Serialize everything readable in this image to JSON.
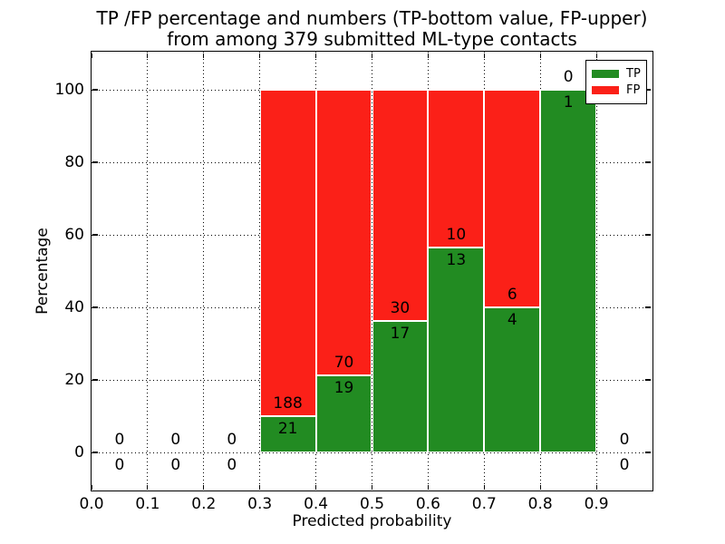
{
  "chart_data": {
    "type": "bar",
    "stacked": true,
    "title_line1": "TP /FP percentage and numbers (TP-bottom value, FP-upper)",
    "title_line2": "from among 379 submitted ML-type contacts",
    "xlabel": "Predicted probability",
    "ylabel": "Percentage",
    "total_contacts": 379,
    "xlim": [
      0.0,
      1.0
    ],
    "ylim": [
      -10.5,
      110.5
    ],
    "xticks": {
      "values": [
        0.0,
        0.1,
        0.2,
        0.3,
        0.4,
        0.5,
        0.6,
        0.7,
        0.8,
        0.9
      ],
      "labels": [
        "0.0",
        "0.1",
        "0.2",
        "0.3",
        "0.4",
        "0.5",
        "0.6",
        "0.7",
        "0.8",
        "0.9"
      ]
    },
    "yticks": {
      "values": [
        0,
        20,
        40,
        60,
        80,
        100
      ],
      "labels": [
        "0",
        "20",
        "40",
        "60",
        "80",
        "100"
      ]
    },
    "grid": {
      "visible": true,
      "style": "dotted",
      "color": "#000000"
    },
    "bin_edges": [
      0.0,
      0.1,
      0.2,
      0.3,
      0.4,
      0.5,
      0.6,
      0.7,
      0.8,
      0.9,
      1.0
    ],
    "categories": [
      "0.0-0.1",
      "0.1-0.2",
      "0.2-0.3",
      "0.3-0.4",
      "0.4-0.5",
      "0.5-0.6",
      "0.6-0.7",
      "0.7-0.8",
      "0.8-0.9",
      "0.9-1.0"
    ],
    "series": [
      {
        "name": "TP",
        "color": "#228b22",
        "counts": [
          0,
          0,
          0,
          21,
          19,
          17,
          13,
          4,
          1,
          0
        ],
        "pct": [
          0,
          0,
          0,
          10.05,
          21.35,
          36.17,
          56.52,
          40.0,
          100.0,
          0
        ]
      },
      {
        "name": "FP",
        "color": "#fb2018",
        "counts": [
          0,
          0,
          0,
          188,
          70,
          30,
          10,
          6,
          0,
          0
        ],
        "pct": [
          0,
          0,
          0,
          89.95,
          78.65,
          63.83,
          43.48,
          60.0,
          0.0,
          0
        ]
      }
    ],
    "legend": {
      "position": "upper-right",
      "entries": [
        {
          "label": "TP",
          "color": "#228b22"
        },
        {
          "label": "FP",
          "color": "#fb2018"
        }
      ]
    }
  }
}
